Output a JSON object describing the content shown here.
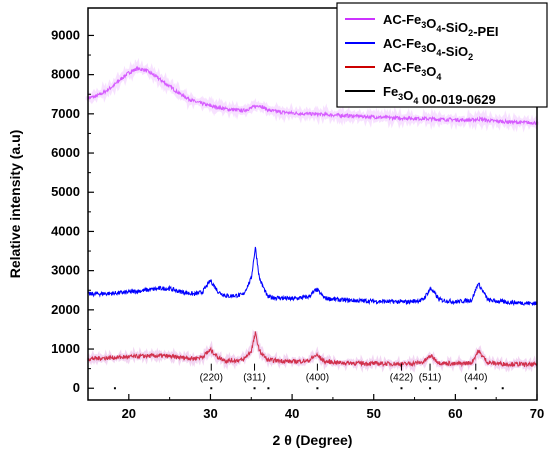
{
  "chart_data": {
    "type": "line",
    "xlabel": "2 θ (Degree)",
    "ylabel": "Relative intensity (a.u)",
    "xlim": [
      15,
      70
    ],
    "ylim": [
      -300,
      9700
    ],
    "x_ticks": [
      20,
      30,
      40,
      50,
      60,
      70
    ],
    "y_ticks": [
      0,
      1000,
      2000,
      3000,
      4000,
      5000,
      6000,
      7000,
      8000,
      9000
    ],
    "grid": false,
    "legend_position": "top-right",
    "series": [
      {
        "name": "AC-Fe3O4-SiO2-PEI",
        "color": "#cc33ff",
        "x": [
          15,
          16,
          17,
          18,
          19,
          20,
          21,
          22,
          23,
          24,
          25,
          26,
          27,
          28,
          30,
          32,
          34,
          35,
          36,
          37,
          38,
          40,
          42,
          44,
          46,
          48,
          50,
          52,
          54,
          56,
          58,
          60,
          62,
          63,
          64,
          66,
          68,
          70
        ],
        "y": [
          7400,
          7450,
          7550,
          7700,
          7880,
          8050,
          8150,
          8120,
          8000,
          7850,
          7700,
          7550,
          7420,
          7320,
          7200,
          7120,
          7080,
          7150,
          7220,
          7100,
          7060,
          7020,
          7000,
          6980,
          6960,
          6940,
          6920,
          6900,
          6890,
          6880,
          6860,
          6850,
          6840,
          6870,
          6830,
          6800,
          6780,
          6770
        ]
      },
      {
        "name": "AC-Fe3O4-SiO2",
        "color": "#0000ff",
        "x": [
          15,
          18,
          20,
          22,
          24,
          25,
          26,
          28,
          29,
          30,
          31,
          32,
          34,
          35,
          35.5,
          36,
          37,
          40,
          42,
          43,
          44,
          46,
          50,
          54,
          56,
          57,
          58,
          60,
          62,
          62.8,
          64,
          66,
          68,
          70
        ],
        "y": [
          2400,
          2420,
          2450,
          2500,
          2550,
          2540,
          2480,
          2400,
          2450,
          2750,
          2450,
          2350,
          2380,
          2800,
          3600,
          2800,
          2330,
          2280,
          2330,
          2520,
          2300,
          2250,
          2220,
          2200,
          2250,
          2550,
          2260,
          2200,
          2250,
          2680,
          2250,
          2200,
          2180,
          2160
        ]
      },
      {
        "name": "AC-Fe3O4",
        "color": "#cc0000",
        "x": [
          15,
          18,
          20,
          22,
          24,
          26,
          28,
          29,
          30,
          31,
          32,
          34,
          35,
          35.5,
          36,
          37,
          40,
          42,
          43,
          44,
          46,
          50,
          54,
          56,
          57,
          58,
          60,
          62,
          62.8,
          64,
          66,
          68,
          70
        ],
        "y": [
          750,
          780,
          800,
          820,
          830,
          790,
          760,
          800,
          980,
          780,
          700,
          720,
          950,
          1400,
          950,
          720,
          680,
          700,
          850,
          680,
          650,
          630,
          620,
          660,
          830,
          650,
          620,
          650,
          950,
          650,
          620,
          610,
          600
        ]
      },
      {
        "name": "Fe3O4 00-019-0629",
        "color": "#000000",
        "x": [
          18.3,
          30.1,
          35.4,
          37.1,
          43.1,
          53.4,
          56.9,
          62.5,
          65.8
        ],
        "y": [
          0,
          0,
          0,
          0,
          0,
          0,
          0,
          0,
          0
        ]
      }
    ],
    "annotations": [
      {
        "text": "(220)",
        "x": 30.1
      },
      {
        "text": "(311)",
        "x": 35.4
      },
      {
        "text": "(400)",
        "x": 43.1
      },
      {
        "text": "(422)",
        "x": 53.4
      },
      {
        "text": "(511)",
        "x": 56.9
      },
      {
        "text": "(440)",
        "x": 62.5
      }
    ]
  },
  "legend": {
    "entries": [
      {
        "main": "AC-Fe",
        "sub1": "3",
        "mid": "O",
        "sub2": "4",
        "tail": "-SiO",
        "sub3": "2",
        "end": "-PEI"
      },
      {
        "main": "AC-Fe",
        "sub1": "3",
        "mid": "O",
        "sub2": "4",
        "tail": "-SiO",
        "sub3": "2",
        "end": ""
      },
      {
        "main": "AC-Fe",
        "sub1": "3",
        "mid": "O",
        "sub2": "4",
        "tail": "",
        "sub3": "",
        "end": ""
      },
      {
        "main": "Fe",
        "sub1": "3",
        "mid": "O",
        "sub2": "4",
        "tail": " 00-019-0629",
        "sub3": "",
        "end": ""
      }
    ]
  }
}
